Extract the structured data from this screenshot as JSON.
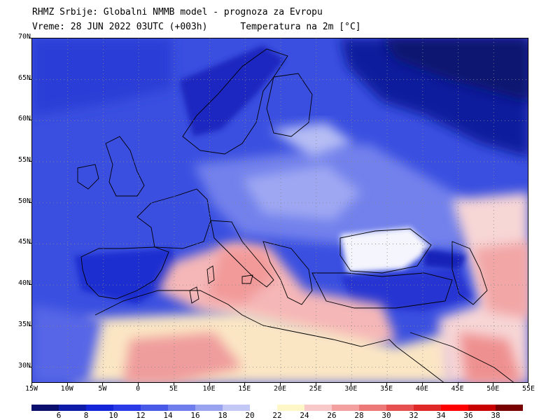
{
  "header": {
    "title_line1": "RHMZ Srbije: Globalni NMMB model - prognoza za Evropu",
    "title_line2_left": "Vreme: 28 JUN 2022 03UTC (+003h)",
    "title_line2_right": "Temperatura na 2m [°C]"
  },
  "map": {
    "lon_range": [
      -15,
      55
    ],
    "lat_range": [
      28,
      70
    ],
    "lat_labels": [
      "70N",
      "65N",
      "60N",
      "55N",
      "50N",
      "45N",
      "40N",
      "35N",
      "30N"
    ],
    "lat_values": [
      70,
      65,
      60,
      55,
      50,
      45,
      40,
      35,
      30
    ],
    "lon_labels": [
      "15W",
      "10W",
      "5W",
      "0",
      "5E",
      "10E",
      "15E",
      "20E",
      "25E",
      "30E",
      "35E",
      "40E",
      "45E",
      "50E",
      "55E"
    ],
    "lon_values": [
      -15,
      -10,
      -5,
      0,
      5,
      10,
      15,
      20,
      25,
      30,
      35,
      40,
      45,
      50,
      55
    ],
    "grid": "dotted"
  },
  "colorbar": {
    "labels": [
      "6",
      "8",
      "10",
      "12",
      "14",
      "16",
      "18",
      "20",
      "22",
      "24",
      "26",
      "28",
      "30",
      "32",
      "34",
      "36",
      "38"
    ],
    "colors": [
      "#0a0f6e",
      "#0e1aa8",
      "#1424d8",
      "#2a3ae6",
      "#4a5ae8",
      "#6f7eec",
      "#9aa3f0",
      "#c4c8f6",
      "#ffffff",
      "#fff7c8",
      "#f9c8c8",
      "#f2a0a0",
      "#ec7878",
      "#e65050",
      "#e02828",
      "#ff0000",
      "#c80000",
      "#780000"
    ]
  }
}
